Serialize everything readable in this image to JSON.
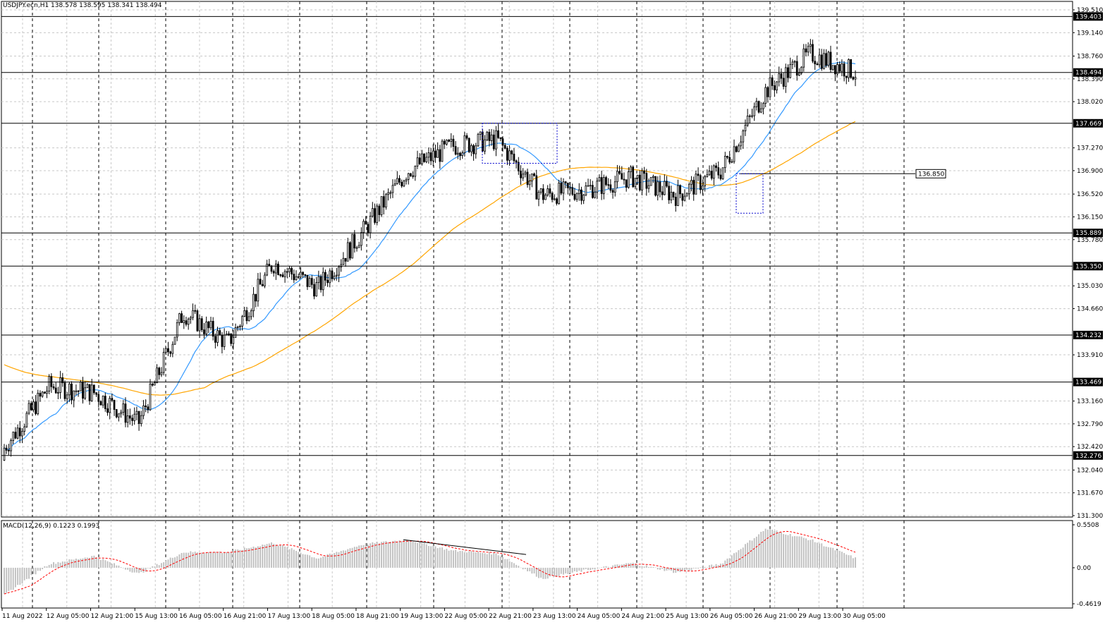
{
  "header": {
    "symbol_line": "USDJPY.ecn,H1  138.578 138.595 138.341 138.494",
    "macd_line": "MACD(12,26,9) 0.1223 0.1993"
  },
  "colors": {
    "bull": "#ffffff",
    "bear": "#000000",
    "ma_fast": "#3399ff",
    "ma_slow": "#ffa500",
    "macd_hist": "#c0c0c0",
    "macd_signal": "#ff0000",
    "grid": "#c8c8c8",
    "selection": "#0000cc"
  },
  "chart_data": [
    {
      "type": "candlestick",
      "symbol": "USDJPY.ecn",
      "timeframe": "H1",
      "ylim": [
        131.3,
        139.51
      ],
      "y_ticks": [
        "139.510",
        "139.140",
        "138.760",
        "138.390",
        "138.020",
        "137.270",
        "136.900",
        "136.520",
        "136.150",
        "135.780",
        "135.030",
        "134.660",
        "133.910",
        "133.160",
        "132.790",
        "132.420",
        "132.040",
        "131.670",
        "131.300"
      ],
      "x_ticks": [
        "11 Aug 2022",
        "12 Aug 05:00",
        "12 Aug 21:00",
        "15 Aug 13:00",
        "16 Aug 05:00",
        "16 Aug 21:00",
        "17 Aug 13:00",
        "18 Aug 05:00",
        "18 Aug 21:00",
        "19 Aug 13:00",
        "22 Aug 05:00",
        "22 Aug 21:00",
        "23 Aug 13:00",
        "24 Aug 05:00",
        "24 Aug 21:00",
        "25 Aug 13:00",
        "26 Aug 05:00",
        "26 Aug 21:00",
        "29 Aug 13:00",
        "30 Aug 05:00"
      ],
      "levels": [
        {
          "value": 139.403,
          "label": "139.403"
        },
        {
          "value": 138.494,
          "label": "138.494"
        },
        {
          "value": 137.669,
          "label": "137.669"
        },
        {
          "value": 135.889,
          "label": "135.889"
        },
        {
          "value": 135.35,
          "label": "135.350"
        },
        {
          "value": 134.232,
          "label": "134.232"
        },
        {
          "value": 133.469,
          "label": "133.469"
        },
        {
          "value": 132.276,
          "label": "132.276"
        }
      ],
      "ray": {
        "value": 136.85,
        "label": "136.850"
      },
      "key_points": [
        {
          "t": "11 Aug 2022",
          "close": 132.4
        },
        {
          "t": "12 Aug 05:00",
          "close": 133.4
        },
        {
          "t": "12 Aug 21:00",
          "close": 133.3
        },
        {
          "t": "15 Aug 13:00",
          "close": 132.8
        },
        {
          "t": "16 Aug 05:00",
          "close": 134.6
        },
        {
          "t": "16 Aug 21:00",
          "close": 134.1
        },
        {
          "t": "17 Aug 13:00",
          "close": 135.4
        },
        {
          "t": "18 Aug 05:00",
          "close": 135.0
        },
        {
          "t": "18 Aug 21:00",
          "close": 135.9
        },
        {
          "t": "19 Aug 13:00",
          "close": 136.9
        },
        {
          "t": "22 Aug 05:00",
          "close": 137.3
        },
        {
          "t": "22 Aug 21:00",
          "close": 137.4
        },
        {
          "t": "23 Aug 13:00",
          "close": 136.5
        },
        {
          "t": "24 Aug 05:00",
          "close": 136.6
        },
        {
          "t": "24 Aug 21:00",
          "close": 136.8
        },
        {
          "t": "25 Aug 13:00",
          "close": 136.5
        },
        {
          "t": "26 Aug 05:00",
          "close": 136.9
        },
        {
          "t": "26 Aug 21:00",
          "close": 138.2
        },
        {
          "t": "29 Aug 13:00",
          "close": 138.8
        },
        {
          "t": "30 Aug 05:00",
          "close": 138.494
        }
      ]
    },
    {
      "type": "bar",
      "name": "MACD(12,26,9)",
      "ylim": [
        -0.4619,
        0.5508
      ],
      "y_ticks": [
        "0.5508",
        "0.00",
        "-0.4619"
      ],
      "main": 0.1223,
      "signal": 0.1993,
      "key_points": [
        {
          "t": "11 Aug 2022",
          "hist": -0.35
        },
        {
          "t": "12 Aug 05:00",
          "hist": 0.05
        },
        {
          "t": "12 Aug 21:00",
          "hist": 0.15
        },
        {
          "t": "15 Aug 13:00",
          "hist": -0.08
        },
        {
          "t": "16 Aug 05:00",
          "hist": 0.2
        },
        {
          "t": "16 Aug 21:00",
          "hist": 0.2
        },
        {
          "t": "17 Aug 13:00",
          "hist": 0.32
        },
        {
          "t": "18 Aug 05:00",
          "hist": 0.12
        },
        {
          "t": "18 Aug 21:00",
          "hist": 0.3
        },
        {
          "t": "19 Aug 13:00",
          "hist": 0.36
        },
        {
          "t": "22 Aug 05:00",
          "hist": 0.22
        },
        {
          "t": "22 Aug 21:00",
          "hist": 0.18
        },
        {
          "t": "23 Aug 13:00",
          "hist": -0.14
        },
        {
          "t": "24 Aug 05:00",
          "hist": -0.03
        },
        {
          "t": "24 Aug 21:00",
          "hist": 0.06
        },
        {
          "t": "25 Aug 13:00",
          "hist": -0.06
        },
        {
          "t": "26 Aug 05:00",
          "hist": 0.05
        },
        {
          "t": "26 Aug 21:00",
          "hist": 0.5
        },
        {
          "t": "29 Aug 13:00",
          "hist": 0.36
        },
        {
          "t": "30 Aug 05:00",
          "hist": 0.1223
        }
      ]
    }
  ]
}
